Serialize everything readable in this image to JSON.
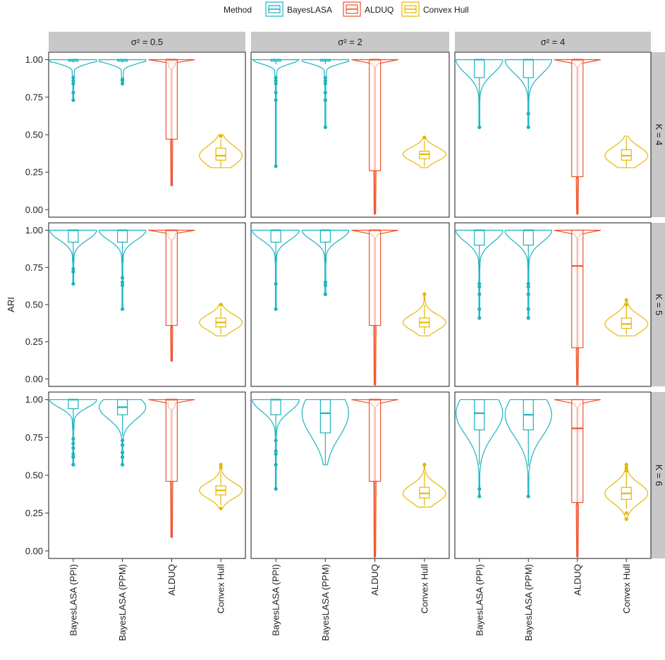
{
  "chart_data": {
    "type": "violin",
    "legend": {
      "title": "Method",
      "position": "top",
      "entries": [
        {
          "label": "BayesLASA",
          "color": "#1BB3C1"
        },
        {
          "label": "ALDUQ",
          "color": "#F0522A"
        },
        {
          "label": "Convex Hull",
          "color": "#E6B800"
        }
      ]
    },
    "ylabel": "ARI",
    "ylim": [
      -0.05,
      1.05
    ],
    "yticks": [
      "0.00",
      "0.25",
      "0.50",
      "0.75",
      "1.00"
    ],
    "categories": [
      "BayesLASA (PPI)",
      "BayesLASA (PPM)",
      "ALDUQ",
      "Convex Hull"
    ],
    "category_method": [
      "BayesLASA",
      "BayesLASA",
      "ALDUQ",
      "Convex Hull"
    ],
    "col_strips": [
      "σ² = 0.5",
      "σ² = 2",
      "σ² = 4"
    ],
    "row_strips": [
      "K = 4",
      "K = 5",
      "K = 6"
    ],
    "grid": false,
    "panels": [
      {
        "row": 0,
        "col": 0,
        "series": [
          {
            "category": "BayesLASA (PPI)",
            "q1": 0.99,
            "median": 1.0,
            "q3": 1.0,
            "whisker_low": 0.98,
            "whisker_high": 1.0,
            "min": 0.73,
            "max": 1.0,
            "outliers": [
              0.73,
              0.78,
              0.84,
              0.86,
              0.88
            ]
          },
          {
            "category": "BayesLASA (PPM)",
            "q1": 0.99,
            "median": 1.0,
            "q3": 1.0,
            "whisker_low": 0.98,
            "whisker_high": 1.0,
            "min": 0.84,
            "max": 1.0,
            "outliers": [
              0.84,
              0.86,
              0.87
            ]
          },
          {
            "category": "ALDUQ",
            "q1": 0.47,
            "median": 1.0,
            "q3": 1.0,
            "whisker_low": 0.16,
            "whisker_high": 1.0,
            "min": 0.16,
            "max": 1.0,
            "outliers": []
          },
          {
            "category": "Convex Hull",
            "q1": 0.33,
            "median": 0.36,
            "q3": 0.41,
            "whisker_low": 0.28,
            "whisker_high": 0.47,
            "min": 0.28,
            "max": 0.5,
            "outliers": [
              0.49
            ]
          }
        ]
      },
      {
        "row": 0,
        "col": 1,
        "series": [
          {
            "category": "BayesLASA (PPI)",
            "q1": 0.99,
            "median": 1.0,
            "q3": 1.0,
            "whisker_low": 0.97,
            "whisker_high": 1.0,
            "min": 0.29,
            "max": 1.0,
            "outliers": [
              0.29,
              0.73,
              0.78,
              0.84,
              0.86,
              0.88
            ]
          },
          {
            "category": "BayesLASA (PPM)",
            "q1": 0.99,
            "median": 1.0,
            "q3": 1.0,
            "whisker_low": 0.97,
            "whisker_high": 1.0,
            "min": 0.55,
            "max": 1.0,
            "outliers": [
              0.55,
              0.73,
              0.78,
              0.84,
              0.86,
              0.88
            ]
          },
          {
            "category": "ALDUQ",
            "q1": 0.26,
            "median": 1.0,
            "q3": 1.0,
            "whisker_low": -0.03,
            "whisker_high": 1.0,
            "min": -0.03,
            "max": 1.0,
            "outliers": []
          },
          {
            "category": "Convex Hull",
            "q1": 0.34,
            "median": 0.37,
            "q3": 0.39,
            "whisker_low": 0.29,
            "whisker_high": 0.46,
            "min": 0.28,
            "max": 0.49,
            "outliers": [
              0.48
            ]
          }
        ]
      },
      {
        "row": 0,
        "col": 2,
        "series": [
          {
            "category": "BayesLASA (PPI)",
            "q1": 0.88,
            "median": 1.0,
            "q3": 1.0,
            "whisker_low": 0.72,
            "whisker_high": 1.0,
            "min": 0.55,
            "max": 1.0,
            "outliers": [
              0.55
            ]
          },
          {
            "category": "BayesLASA (PPM)",
            "q1": 0.88,
            "median": 1.0,
            "q3": 1.0,
            "whisker_low": 0.72,
            "whisker_high": 1.0,
            "min": 0.55,
            "max": 1.0,
            "outliers": [
              0.55,
              0.64
            ]
          },
          {
            "category": "ALDUQ",
            "q1": 0.22,
            "median": 1.0,
            "q3": 1.0,
            "whisker_low": -0.03,
            "whisker_high": 1.0,
            "min": -0.03,
            "max": 1.0,
            "outliers": []
          },
          {
            "category": "Convex Hull",
            "q1": 0.33,
            "median": 0.36,
            "q3": 0.4,
            "whisker_low": 0.28,
            "whisker_high": 0.48,
            "min": 0.28,
            "max": 0.49,
            "outliers": []
          }
        ]
      },
      {
        "row": 1,
        "col": 0,
        "series": [
          {
            "category": "BayesLASA (PPI)",
            "q1": 0.92,
            "median": 1.0,
            "q3": 1.0,
            "whisker_low": 0.78,
            "whisker_high": 1.0,
            "min": 0.64,
            "max": 1.0,
            "outliers": [
              0.64,
              0.72,
              0.74
            ]
          },
          {
            "category": "BayesLASA (PPM)",
            "q1": 0.92,
            "median": 1.0,
            "q3": 1.0,
            "whisker_low": 0.78,
            "whisker_high": 1.0,
            "min": 0.47,
            "max": 1.0,
            "outliers": [
              0.47,
              0.63,
              0.65,
              0.68
            ]
          },
          {
            "category": "ALDUQ",
            "q1": 0.36,
            "median": 1.0,
            "q3": 1.0,
            "whisker_low": 0.12,
            "whisker_high": 1.0,
            "min": 0.12,
            "max": 1.0,
            "outliers": []
          },
          {
            "category": "Convex Hull",
            "q1": 0.35,
            "median": 0.38,
            "q3": 0.41,
            "whisker_low": 0.3,
            "whisker_high": 0.48,
            "min": 0.29,
            "max": 0.5,
            "outliers": [
              0.5
            ]
          }
        ]
      },
      {
        "row": 1,
        "col": 1,
        "series": [
          {
            "category": "BayesLASA (PPI)",
            "q1": 0.92,
            "median": 1.0,
            "q3": 1.0,
            "whisker_low": 0.78,
            "whisker_high": 1.0,
            "min": 0.47,
            "max": 1.0,
            "outliers": [
              0.47,
              0.64
            ]
          },
          {
            "category": "BayesLASA (PPM)",
            "q1": 0.92,
            "median": 1.0,
            "q3": 1.0,
            "whisker_low": 0.78,
            "whisker_high": 1.0,
            "min": 0.57,
            "max": 1.0,
            "outliers": [
              0.57,
              0.63,
              0.65
            ]
          },
          {
            "category": "ALDUQ",
            "q1": 0.36,
            "median": 1.0,
            "q3": 1.0,
            "whisker_low": -0.04,
            "whisker_high": 1.0,
            "min": -0.04,
            "max": 1.0,
            "outliers": []
          },
          {
            "category": "Convex Hull",
            "q1": 0.35,
            "median": 0.38,
            "q3": 0.41,
            "whisker_low": 0.3,
            "whisker_high": 0.5,
            "min": 0.29,
            "max": 0.58,
            "outliers": [
              0.57
            ]
          }
        ]
      },
      {
        "row": 1,
        "col": 2,
        "series": [
          {
            "category": "BayesLASA (PPI)",
            "q1": 0.9,
            "median": 1.0,
            "q3": 1.0,
            "whisker_low": 0.72,
            "whisker_high": 1.0,
            "min": 0.41,
            "max": 1.0,
            "outliers": [
              0.41,
              0.47,
              0.57,
              0.62,
              0.64
            ]
          },
          {
            "category": "BayesLASA (PPM)",
            "q1": 0.9,
            "median": 1.0,
            "q3": 1.0,
            "whisker_low": 0.72,
            "whisker_high": 1.0,
            "min": 0.41,
            "max": 1.0,
            "outliers": [
              0.41,
              0.47,
              0.57,
              0.62,
              0.64
            ]
          },
          {
            "category": "ALDUQ",
            "q1": 0.21,
            "median": 0.76,
            "q3": 1.0,
            "whisker_low": -0.04,
            "whisker_high": 1.0,
            "min": -0.04,
            "max": 1.0,
            "outliers": []
          },
          {
            "category": "Convex Hull",
            "q1": 0.34,
            "median": 0.37,
            "q3": 0.41,
            "whisker_low": 0.3,
            "whisker_high": 0.49,
            "min": 0.29,
            "max": 0.54,
            "outliers": [
              0.5,
              0.53
            ]
          }
        ]
      },
      {
        "row": 2,
        "col": 0,
        "series": [
          {
            "category": "BayesLASA (PPI)",
            "q1": 0.94,
            "median": 1.0,
            "q3": 1.0,
            "whisker_low": 0.8,
            "whisker_high": 1.0,
            "min": 0.57,
            "max": 1.0,
            "outliers": [
              0.57,
              0.62,
              0.64,
              0.68,
              0.71,
              0.74
            ]
          },
          {
            "category": "BayesLASA (PPM)",
            "q1": 0.9,
            "median": 0.95,
            "q3": 1.0,
            "whisker_low": 0.76,
            "whisker_high": 1.0,
            "min": 0.57,
            "max": 1.0,
            "outliers": [
              0.57,
              0.62,
              0.65,
              0.7,
              0.73
            ]
          },
          {
            "category": "ALDUQ",
            "q1": 0.46,
            "median": 1.0,
            "q3": 1.0,
            "whisker_low": 0.09,
            "whisker_high": 1.0,
            "min": 0.09,
            "max": 1.0,
            "outliers": []
          },
          {
            "category": "Convex Hull",
            "q1": 0.37,
            "median": 0.4,
            "q3": 0.43,
            "whisker_low": 0.3,
            "whisker_high": 0.52,
            "min": 0.28,
            "max": 0.58,
            "outliers": [
              0.28,
              0.55,
              0.57
            ]
          }
        ]
      },
      {
        "row": 2,
        "col": 1,
        "series": [
          {
            "category": "BayesLASA (PPI)",
            "q1": 0.9,
            "median": 1.0,
            "q3": 1.0,
            "whisker_low": 0.76,
            "whisker_high": 1.0,
            "min": 0.41,
            "max": 1.0,
            "outliers": [
              0.41,
              0.57,
              0.64,
              0.66,
              0.73
            ]
          },
          {
            "category": "BayesLASA (PPM)",
            "q1": 0.78,
            "median": 0.91,
            "q3": 1.0,
            "whisker_low": 0.57,
            "whisker_high": 1.0,
            "min": 0.57,
            "max": 1.0,
            "outliers": []
          },
          {
            "category": "ALDUQ",
            "q1": 0.46,
            "median": 1.0,
            "q3": 1.0,
            "whisker_low": -0.04,
            "whisker_high": 1.0,
            "min": -0.04,
            "max": 1.0,
            "outliers": []
          },
          {
            "category": "Convex Hull",
            "q1": 0.35,
            "median": 0.38,
            "q3": 0.42,
            "whisker_low": 0.3,
            "whisker_high": 0.52,
            "min": 0.29,
            "max": 0.58,
            "outliers": [
              0.57
            ]
          }
        ]
      },
      {
        "row": 2,
        "col": 2,
        "series": [
          {
            "category": "BayesLASA (PPI)",
            "q1": 0.8,
            "median": 0.91,
            "q3": 1.0,
            "whisker_low": 0.57,
            "whisker_high": 1.0,
            "min": 0.36,
            "max": 1.0,
            "outliers": [
              0.36,
              0.41
            ]
          },
          {
            "category": "BayesLASA (PPM)",
            "q1": 0.8,
            "median": 0.9,
            "q3": 1.0,
            "whisker_low": 0.56,
            "whisker_high": 1.0,
            "min": 0.36,
            "max": 1.0,
            "outliers": [
              0.36
            ]
          },
          {
            "category": "ALDUQ",
            "q1": 0.32,
            "median": 0.81,
            "q3": 1.0,
            "whisker_low": -0.04,
            "whisker_high": 1.0,
            "min": -0.04,
            "max": 1.0,
            "outliers": []
          },
          {
            "category": "Convex Hull",
            "q1": 0.34,
            "median": 0.38,
            "q3": 0.42,
            "whisker_low": 0.28,
            "whisker_high": 0.52,
            "min": 0.21,
            "max": 0.58,
            "outliers": [
              0.21,
              0.25,
              0.53,
              0.55,
              0.57
            ]
          }
        ]
      }
    ]
  }
}
